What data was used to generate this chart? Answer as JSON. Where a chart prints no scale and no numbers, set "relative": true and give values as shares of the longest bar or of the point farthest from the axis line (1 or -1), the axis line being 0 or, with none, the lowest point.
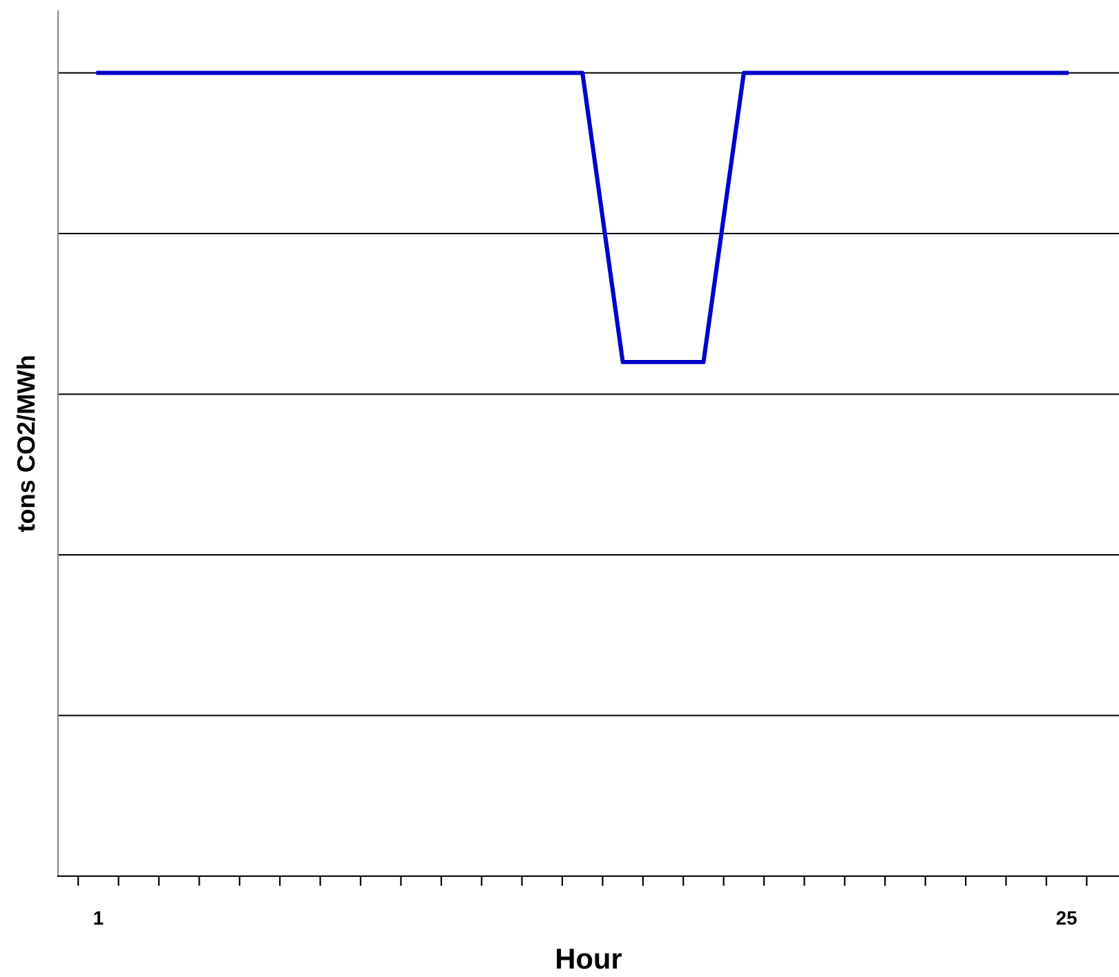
{
  "chart_data": {
    "type": "line",
    "xlabel": "Hour",
    "ylabel": "tons CO2/MWh",
    "relative": true,
    "grid": "y",
    "legend": false,
    "marker": "none",
    "line_style": "solid",
    "categories": [
      "1",
      null,
      null,
      null,
      null,
      null,
      null,
      null,
      null,
      null,
      null,
      null,
      null,
      null,
      null,
      null,
      null,
      null,
      null,
      null,
      null,
      null,
      null,
      null,
      "25"
    ],
    "series": [
      {
        "color": "#0000cc",
        "values": [
          1,
          1,
          1,
          1,
          1,
          1,
          1,
          1,
          1,
          1,
          1,
          1,
          1,
          0.64,
          0.64,
          0.64,
          1,
          1,
          1,
          1,
          1,
          1,
          1,
          1,
          1
        ]
      }
    ]
  }
}
